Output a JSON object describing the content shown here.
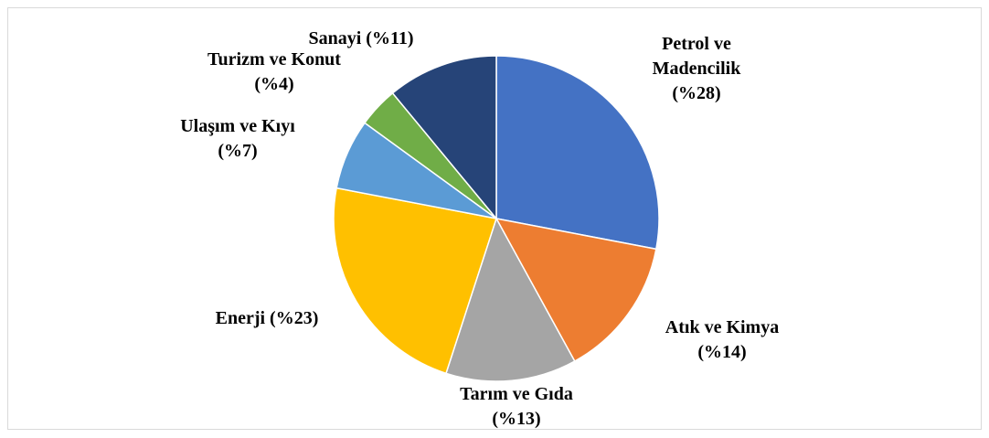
{
  "chart_data": {
    "type": "pie",
    "categories": [
      "Petrol ve Madencilik",
      "Atık ve Kimya",
      "Tarım ve Gıda",
      "Enerji",
      "Ulaşım ve Kıyı",
      "Turizm ve Konut",
      "Sanayi"
    ],
    "values": [
      28,
      14,
      13,
      23,
      7,
      4,
      11
    ],
    "value_labels": [
      "(%28)",
      "(%14)",
      "(%13)",
      "(%23)",
      "(%7)",
      "(%4)",
      "(%11)"
    ],
    "colors": [
      "#4472c4",
      "#ed7d31",
      "#a5a5a5",
      "#ffc000",
      "#5b9bd5",
      "#70ad47",
      "#264478"
    ]
  }
}
